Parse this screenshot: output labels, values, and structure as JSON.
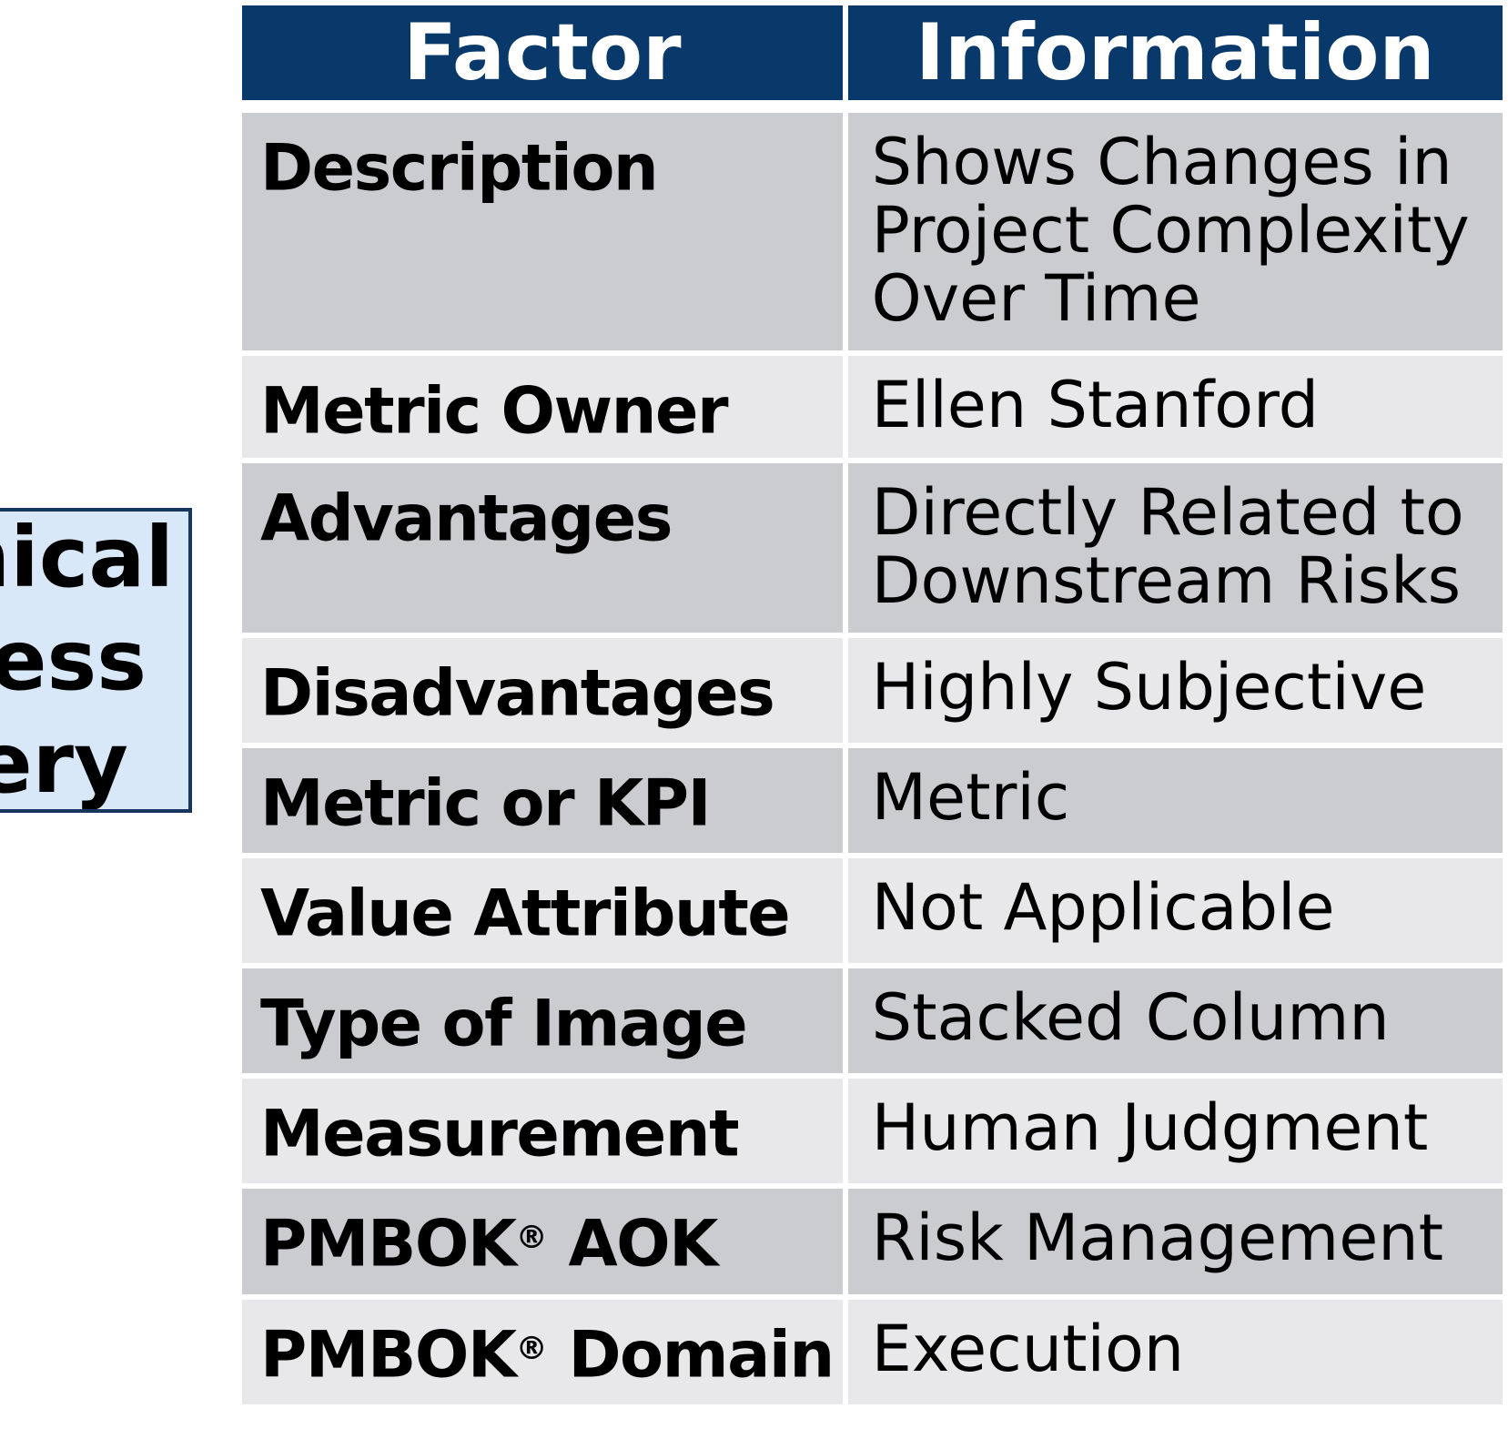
{
  "palette": {
    "header_bg": "#08396a",
    "header_text": "#ffffff",
    "row_dark": "#cbccd0",
    "row_light": "#e8e8ea",
    "body_text": "#000000",
    "callout_bg": "#d9e8f8",
    "callout_border": "#17365d"
  },
  "callout": {
    "visible_lines": [
      "nnical",
      "ness",
      "very"
    ]
  },
  "table": {
    "headers": {
      "factor": "Factor",
      "information": "Information"
    },
    "rows": [
      {
        "factor": "Description",
        "factor_sup": "",
        "factor_post": "",
        "info": "Shows Changes in Project Complexity Over Time"
      },
      {
        "factor": "Metric Owner",
        "factor_sup": "",
        "factor_post": "",
        "info": "Ellen Stanford"
      },
      {
        "factor": "Advantages",
        "factor_sup": "",
        "factor_post": "",
        "info": "Directly Related to Downstream Risks"
      },
      {
        "factor": "Disadvantages",
        "factor_sup": "",
        "factor_post": "",
        "info": "Highly Subjective"
      },
      {
        "factor": "Metric or KPI",
        "factor_sup": "",
        "factor_post": "",
        "info": "Metric"
      },
      {
        "factor": "Value Attribute",
        "factor_sup": "",
        "factor_post": "",
        "info": "Not Applicable"
      },
      {
        "factor": "Type of Image",
        "factor_sup": "",
        "factor_post": "",
        "info": "Stacked Column"
      },
      {
        "factor": "Measurement",
        "factor_sup": "",
        "factor_post": "",
        "info": "Human Judgment"
      },
      {
        "factor": "PMBOK",
        "factor_sup": "®",
        "factor_post": " AOK",
        "info": "Risk Management"
      },
      {
        "factor": "PMBOK",
        "factor_sup": "®",
        "factor_post": " Domain",
        "info": "Execution"
      }
    ]
  }
}
